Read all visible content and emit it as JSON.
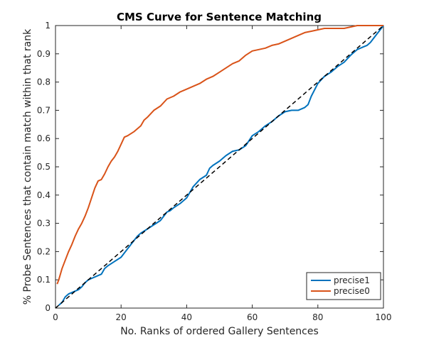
{
  "chart_data": {
    "type": "line",
    "title": "CMS Curve for Sentence Matching",
    "xlabel": "No. Ranks of ordered Gallery Sentences",
    "ylabel": "% Probe Sentences that contain match within that rank",
    "xlim": [
      0,
      100
    ],
    "ylim": [
      0,
      1
    ],
    "xticks": [
      0,
      20,
      40,
      60,
      80,
      100
    ],
    "yticks": [
      0,
      0.1,
      0.2,
      0.3,
      0.4,
      0.5,
      0.6,
      0.7,
      0.8,
      0.9,
      1
    ],
    "xtick_labels": [
      "0",
      "20",
      "40",
      "60",
      "80",
      "100"
    ],
    "ytick_labels": [
      "0",
      "0.1",
      "0.2",
      "0.3",
      "0.4",
      "0.5",
      "0.6",
      "0.7",
      "0.8",
      "0.9",
      "1"
    ],
    "grid": false,
    "legend_position": "bottom-right",
    "series": [
      {
        "name": "precise1",
        "color": "#0072BD",
        "x": [
          1,
          2,
          3,
          4,
          5,
          6,
          7,
          8,
          9,
          10,
          12,
          14,
          15,
          16,
          18,
          20,
          22,
          24,
          25,
          26,
          28,
          30,
          32,
          34,
          35,
          36,
          38,
          40,
          42,
          44,
          46,
          47,
          48,
          50,
          52,
          54,
          56,
          58,
          60,
          62,
          64,
          66,
          68,
          70,
          72,
          74,
          76,
          77,
          78,
          80,
          82,
          84,
          86,
          88,
          90,
          92,
          94,
          95,
          96,
          97,
          98,
          99,
          100
        ],
        "y": [
          0.01,
          0.02,
          0.04,
          0.05,
          0.055,
          0.06,
          0.065,
          0.075,
          0.09,
          0.1,
          0.11,
          0.12,
          0.14,
          0.15,
          0.165,
          0.18,
          0.21,
          0.24,
          0.255,
          0.265,
          0.28,
          0.295,
          0.31,
          0.34,
          0.345,
          0.355,
          0.37,
          0.39,
          0.43,
          0.455,
          0.47,
          0.495,
          0.505,
          0.52,
          0.54,
          0.555,
          0.56,
          0.575,
          0.61,
          0.625,
          0.645,
          0.66,
          0.68,
          0.695,
          0.7,
          0.7,
          0.71,
          0.72,
          0.75,
          0.795,
          0.82,
          0.835,
          0.855,
          0.87,
          0.895,
          0.915,
          0.925,
          0.93,
          0.94,
          0.955,
          0.97,
          0.985,
          1.0
        ]
      },
      {
        "name": "precise0",
        "color": "#D95319",
        "x": [
          0.5,
          1,
          2,
          3,
          4,
          5,
          6,
          7,
          8,
          9,
          10,
          11,
          12,
          13,
          14,
          15,
          16,
          17,
          18,
          19,
          20,
          21,
          22,
          24,
          26,
          27,
          28,
          30,
          32,
          34,
          35,
          36,
          38,
          40,
          42,
          44,
          46,
          48,
          50,
          52,
          54,
          56,
          58,
          60,
          62,
          64,
          66,
          68,
          70,
          72,
          74,
          76,
          78,
          80,
          82,
          84,
          86,
          88,
          90,
          92,
          94,
          96,
          98,
          100
        ],
        "y": [
          0.085,
          0.1,
          0.14,
          0.17,
          0.2,
          0.225,
          0.255,
          0.28,
          0.3,
          0.325,
          0.355,
          0.39,
          0.425,
          0.45,
          0.455,
          0.475,
          0.5,
          0.52,
          0.535,
          0.555,
          0.58,
          0.605,
          0.61,
          0.625,
          0.645,
          0.665,
          0.675,
          0.7,
          0.715,
          0.74,
          0.745,
          0.75,
          0.765,
          0.775,
          0.785,
          0.795,
          0.81,
          0.82,
          0.835,
          0.85,
          0.865,
          0.875,
          0.895,
          0.91,
          0.915,
          0.92,
          0.93,
          0.935,
          0.945,
          0.955,
          0.965,
          0.975,
          0.98,
          0.985,
          0.99,
          0.99,
          0.99,
          0.99,
          0.995,
          1.0,
          1.0,
          1.0,
          1.0,
          1.0
        ]
      },
      {
        "name": "",
        "color": "#000000",
        "dashed": true,
        "x": [
          0,
          100
        ],
        "y": [
          0,
          1
        ]
      }
    ]
  }
}
